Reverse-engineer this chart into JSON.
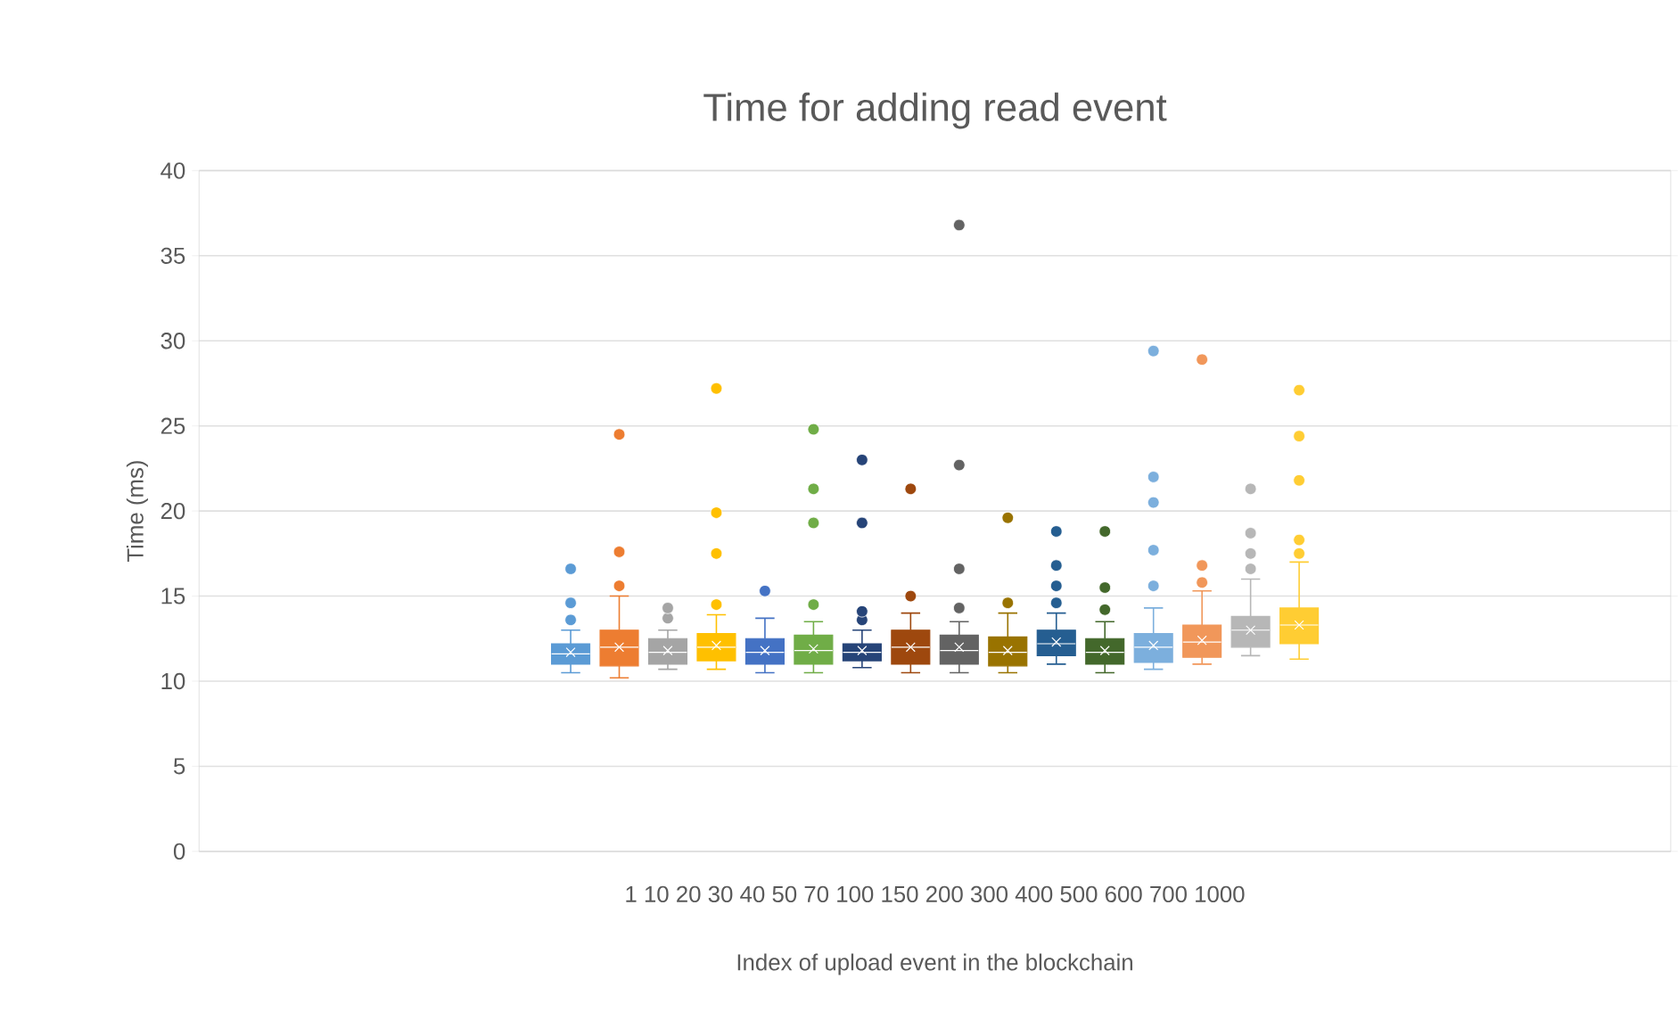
{
  "chart_data": {
    "type": "box",
    "title": "Time for adding read event",
    "xlabel": "Index of upload event in the blockchain",
    "ylabel": "Time (ms)",
    "categories": [
      "1 10 20 30 40 50 70 100 150 200 300 400 500 600 700 1000"
    ],
    "ylim": [
      0,
      40
    ],
    "yticks": [
      0,
      5,
      10,
      15,
      20,
      25,
      30,
      35,
      40
    ],
    "grid": "y",
    "series": [
      {
        "color": "#5b9bd5",
        "boxes": [
          {
            "low": 10.5,
            "q1": 11,
            "median": 11.6,
            "q3": 12.2,
            "high": 13,
            "mean": 11.7,
            "outliers": [
              13.6,
              14.6,
              16.6
            ]
          }
        ]
      },
      {
        "color": "#ed7d31",
        "boxes": [
          {
            "low": 10.2,
            "q1": 10.9,
            "median": 12,
            "q3": 13,
            "high": 15,
            "mean": 12,
            "outliers": [
              15.6,
              17.6,
              24.5
            ]
          }
        ]
      },
      {
        "color": "#a5a5a5",
        "boxes": [
          {
            "low": 10.7,
            "q1": 11,
            "median": 11.7,
            "q3": 12.5,
            "high": 13,
            "mean": 11.8,
            "outliers": [
              13.7,
              14.3
            ]
          }
        ]
      },
      {
        "color": "#ffc000",
        "boxes": [
          {
            "low": 10.7,
            "q1": 11.2,
            "median": 12,
            "q3": 12.8,
            "high": 13.9,
            "mean": 12.1,
            "outliers": [
              14.5,
              17.5,
              19.9,
              27.2
            ]
          }
        ]
      },
      {
        "color": "#4472c4",
        "boxes": [
          {
            "low": 10.5,
            "q1": 11,
            "median": 11.7,
            "q3": 12.5,
            "high": 13.7,
            "mean": 11.8,
            "outliers": [
              15.3
            ]
          }
        ]
      },
      {
        "color": "#70ad47",
        "boxes": [
          {
            "low": 10.5,
            "q1": 11,
            "median": 11.8,
            "q3": 12.7,
            "high": 13.5,
            "mean": 11.9,
            "outliers": [
              14.5,
              19.3,
              21.3,
              24.8
            ]
          }
        ]
      },
      {
        "color": "#264478",
        "boxes": [
          {
            "low": 10.8,
            "q1": 11.2,
            "median": 11.7,
            "q3": 12.2,
            "high": 13,
            "mean": 11.8,
            "outliers": [
              13.6,
              14.1,
              19.3,
              23
            ]
          }
        ]
      },
      {
        "color": "#9e480e",
        "boxes": [
          {
            "low": 10.5,
            "q1": 11,
            "median": 12,
            "q3": 13,
            "high": 14,
            "mean": 12,
            "outliers": [
              15,
              21.3
            ]
          }
        ]
      },
      {
        "color": "#636363",
        "boxes": [
          {
            "low": 10.5,
            "q1": 11,
            "median": 11.8,
            "q3": 12.7,
            "high": 13.5,
            "mean": 12,
            "outliers": [
              14.3,
              16.6,
              22.7,
              36.8
            ]
          }
        ]
      },
      {
        "color": "#997300",
        "boxes": [
          {
            "low": 10.5,
            "q1": 10.9,
            "median": 11.7,
            "q3": 12.6,
            "high": 14,
            "mean": 11.8,
            "outliers": [
              14.6,
              19.6
            ]
          }
        ]
      },
      {
        "color": "#255e91",
        "boxes": [
          {
            "low": 11,
            "q1": 11.5,
            "median": 12.2,
            "q3": 13,
            "high": 14,
            "mean": 12.3,
            "outliers": [
              14.6,
              15.6,
              16.8,
              18.8
            ]
          }
        ]
      },
      {
        "color": "#43682b",
        "boxes": [
          {
            "low": 10.5,
            "q1": 11,
            "median": 11.7,
            "q3": 12.5,
            "high": 13.5,
            "mean": 11.8,
            "outliers": [
              14.2,
              15.5,
              18.8
            ]
          }
        ]
      },
      {
        "color": "#7cafdd",
        "boxes": [
          {
            "low": 10.7,
            "q1": 11.1,
            "median": 12,
            "q3": 12.8,
            "high": 14.3,
            "mean": 12.1,
            "outliers": [
              15.6,
              17.7,
              20.5,
              22,
              29.4
            ]
          }
        ]
      },
      {
        "color": "#f1975a",
        "boxes": [
          {
            "low": 11,
            "q1": 11.4,
            "median": 12.3,
            "q3": 13.3,
            "high": 15.3,
            "mean": 12.4,
            "outliers": [
              15.8,
              16.8,
              28.9
            ]
          }
        ]
      },
      {
        "color": "#b7b7b7",
        "boxes": [
          {
            "low": 11.5,
            "q1": 12,
            "median": 13,
            "q3": 13.8,
            "high": 16,
            "mean": 13,
            "outliers": [
              16.6,
              17.5,
              18.7,
              21.3
            ]
          }
        ]
      },
      {
        "color": "#ffcd33",
        "boxes": [
          {
            "low": 11.3,
            "q1": 12.2,
            "median": 13.3,
            "q3": 14.3,
            "high": 17,
            "mean": 13.3,
            "outliers": [
              17.5,
              18.3,
              21.8,
              24.4,
              27.1
            ]
          }
        ]
      }
    ]
  }
}
